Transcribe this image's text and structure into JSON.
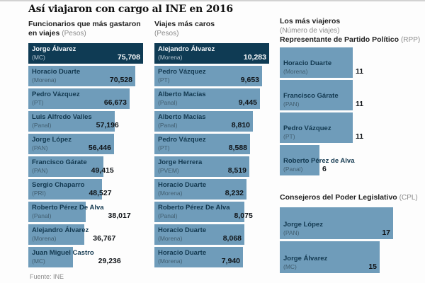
{
  "title": "Así viajaron con cargo al INE en 2016",
  "source": "Fuente: INE",
  "colors": {
    "bar_dark": "#0f3b54",
    "bar_light": "#6f9cba",
    "value_text": "#101418",
    "header_gray": "#8b8b8b",
    "top_rule": "#d2d2d2"
  },
  "headers": {
    "col1_line1": "Funcionarios que más gastaron",
    "col1_line2": "en viajes",
    "col1_unit": "(Pesos)",
    "col2_line1": "Viajes más caros",
    "col2_unit": "(Pesos)",
    "col3_line1": "Los más viajeros",
    "col3_unit": "(Número de viajes)",
    "rpp_title": "Representante de Partido Político",
    "rpp_abbr": "(RPP)",
    "cpl_title": "Consejeros del Poder Legislativo",
    "cpl_abbr": "(CPL)"
  },
  "chart_data": [
    {
      "type": "bar",
      "orientation": "horizontal",
      "title": "Funcionarios que más gastaron en viajes",
      "xlabel": "Pesos",
      "xlim": [
        0,
        80000
      ],
      "grid": false,
      "rows": [
        {
          "name": "Jorge Álvarez",
          "party": "(MC)",
          "value": 75708,
          "display": "75,708",
          "dark": true
        },
        {
          "name": "Horacio Duarte",
          "party": "(Morena)",
          "value": 70528,
          "display": "70,528"
        },
        {
          "name": "Pedro Vázquez",
          "party": "(PT)",
          "value": 66673,
          "display": "66,673"
        },
        {
          "name": "Luis Alfredo Valles",
          "party": "(Panal)",
          "value": 57196,
          "display": "57,196"
        },
        {
          "name": "Jorge López",
          "party": "(PAN)",
          "value": 56446,
          "display": "56,446"
        },
        {
          "name": "Francisco Gárate",
          "party": "(PAN)",
          "value": 49415,
          "display": "49,415"
        },
        {
          "name": "Sergio Chaparro",
          "party": "(PRI)",
          "value": 48527,
          "display": "48,527"
        },
        {
          "name": "Roberto Pérez De Alva",
          "party": "(Panal)",
          "value": 38017,
          "display": "38,017"
        },
        {
          "name": "Alejandro Álvarez",
          "party": "(Morena)",
          "value": 36767,
          "display": "36,767"
        },
        {
          "name": "Juan Miguel Castro",
          "party": "(MC)",
          "value": 29236,
          "display": "29,236"
        }
      ]
    },
    {
      "type": "bar",
      "orientation": "horizontal",
      "title": "Viajes más caros",
      "xlabel": "Pesos",
      "xlim": [
        0,
        11000
      ],
      "grid": false,
      "rows": [
        {
          "name": "Alejandro Álvarez",
          "party": "(Morena)",
          "value": 10283,
          "display": "10,283",
          "dark": true
        },
        {
          "name": "Pedro Vázquez",
          "party": "(PT)",
          "value": 9653,
          "display": "9,653"
        },
        {
          "name": "Alberto Macías",
          "party": "(Panal)",
          "value": 9445,
          "display": "9,445"
        },
        {
          "name": "Alberto Macías",
          "party": "(Panal)",
          "value": 8810,
          "display": "8,810"
        },
        {
          "name": "Pedro Vázquez",
          "party": "(PT)",
          "value": 8588,
          "display": "8,588"
        },
        {
          "name": "Jorge Herrera",
          "party": "(PVEM)",
          "value": 8519,
          "display": "8,519"
        },
        {
          "name": "Horacio Duarte",
          "party": "(Morena)",
          "value": 8232,
          "display": "8,232"
        },
        {
          "name": "Roberto Pérez De Alva",
          "party": "(Panal)",
          "value": 8075,
          "display": "8,075"
        },
        {
          "name": "Horacio Duarte",
          "party": "(Morena)",
          "value": 8068,
          "display": "8,068"
        },
        {
          "name": "Horacio Duarte",
          "party": "(Morena)",
          "value": 7940,
          "display": "7,940"
        }
      ]
    },
    {
      "type": "bar",
      "orientation": "horizontal",
      "title": "Los más viajeros — Representante de Partido Político (RPP)",
      "xlabel": "Número de viajes",
      "xlim": [
        0,
        18
      ],
      "grid": false,
      "rows": [
        {
          "name": "Horacio Duarte",
          "party": "(Morena)",
          "value": 11,
          "display": "11"
        },
        {
          "name": "Francisco Gárate",
          "party": "(PAN)",
          "value": 11,
          "display": "11"
        },
        {
          "name": "Pedro Vázquez",
          "party": "(PT)",
          "value": 11,
          "display": "11"
        },
        {
          "name": "Roberto Pérez de Alva",
          "party": "(Panal)",
          "value": 6,
          "display": "6"
        }
      ]
    },
    {
      "type": "bar",
      "orientation": "horizontal",
      "title": "Los más viajeros — Consejeros del Poder Legislativo (CPL)",
      "xlabel": "Número de viajes",
      "xlim": [
        0,
        18
      ],
      "grid": false,
      "rows": [
        {
          "name": "Jorge López",
          "party": "(PAN)",
          "value": 17,
          "display": "17"
        },
        {
          "name": "Jorge Álvarez",
          "party": "(MC)",
          "value": 15,
          "display": "15"
        }
      ]
    }
  ]
}
